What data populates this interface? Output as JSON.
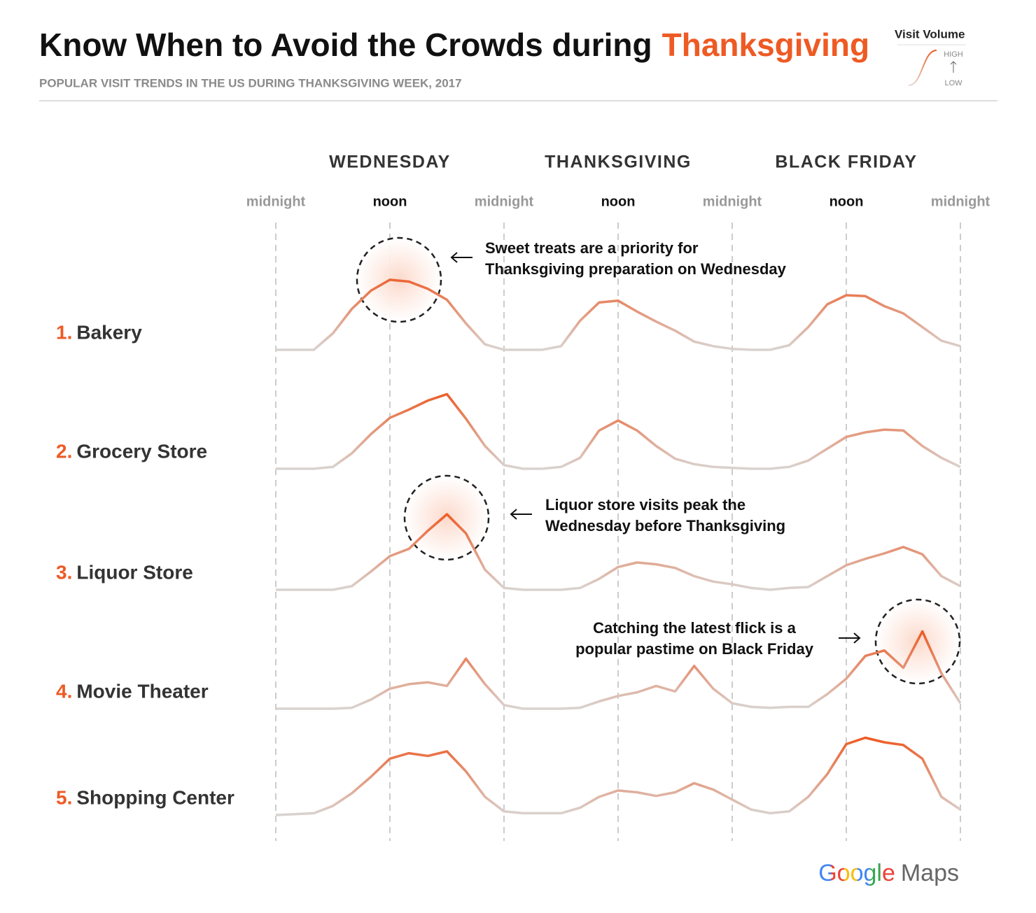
{
  "title": {
    "text": "Know When to Avoid the Crowds during",
    "highlight": "Thanksgiving"
  },
  "subtitle": "POPULAR VISIT TRENDS IN THE US DURING THANKSGIVING WEEK, 2017",
  "legend": {
    "title": "Visit Volume",
    "high": "HIGH",
    "low": "LOW"
  },
  "chart_data": {
    "type": "line",
    "days": [
      "WEDNESDAY",
      "THANKSGIVING",
      "BLACK FRIDAY"
    ],
    "x": [
      0,
      2,
      4,
      6,
      8,
      10,
      12,
      14,
      16,
      18,
      20,
      22,
      24,
      26,
      28,
      30,
      32,
      34,
      36,
      38,
      40,
      42,
      44,
      46,
      48,
      50,
      52,
      54,
      56,
      58,
      60,
      62,
      64,
      66,
      68,
      70,
      72
    ],
    "xlim": [
      0,
      72
    ],
    "xticks": [
      {
        "value": 0,
        "label": "midnight"
      },
      {
        "value": 12,
        "label": "noon"
      },
      {
        "value": 24,
        "label": "midnight"
      },
      {
        "value": 36,
        "label": "noon"
      },
      {
        "value": 48,
        "label": "midnight"
      },
      {
        "value": 60,
        "label": "noon"
      },
      {
        "value": 72,
        "label": "midnight"
      }
    ],
    "ylim": [
      0,
      100
    ],
    "colors": {
      "low": "#d9d3d0",
      "high": "#ee5a24"
    },
    "series": [
      {
        "rank": "1.",
        "name": "Bakery",
        "values": [
          0,
          0,
          0,
          18,
          45,
          65,
          77,
          75,
          67,
          55,
          29,
          6,
          0,
          0,
          0,
          4,
          32,
          52,
          54,
          42,
          31,
          21,
          9,
          4,
          1,
          0,
          0,
          5,
          25,
          50,
          60,
          59,
          48,
          40,
          25,
          10,
          4
        ]
      },
      {
        "rank": "2.",
        "name": "Grocery Store",
        "values": [
          0,
          0,
          0,
          2,
          17,
          38,
          56,
          65,
          75,
          82,
          55,
          25,
          4,
          0,
          0,
          2,
          12,
          42,
          53,
          42,
          25,
          11,
          5,
          2,
          1,
          0,
          0,
          2,
          9,
          22,
          35,
          40,
          43,
          42,
          25,
          12,
          2
        ]
      },
      {
        "rank": "3.",
        "name": "Liquor Store",
        "values": [
          0,
          0,
          0,
          0,
          4,
          20,
          37,
          45,
          65,
          83,
          62,
          22,
          2,
          0,
          0,
          0,
          2,
          12,
          25,
          30,
          28,
          24,
          15,
          9,
          6,
          2,
          0,
          2,
          3,
          15,
          27,
          34,
          40,
          47,
          39,
          15,
          4
        ]
      },
      {
        "rank": "4.",
        "name": "Movie Theater",
        "values": [
          0,
          0,
          0,
          0,
          1,
          10,
          22,
          27,
          29,
          25,
          55,
          27,
          4,
          0,
          0,
          0,
          1,
          8,
          14,
          18,
          25,
          19,
          47,
          22,
          6,
          2,
          1,
          2,
          2,
          16,
          33,
          58,
          64,
          45,
          85,
          39,
          6
        ]
      },
      {
        "rank": "5.",
        "name": "Shopping Center",
        "values": [
          0,
          1,
          2,
          10,
          24,
          42,
          62,
          68,
          65,
          70,
          48,
          20,
          4,
          2,
          2,
          2,
          8,
          20,
          27,
          25,
          21,
          25,
          35,
          28,
          17,
          6,
          2,
          4,
          20,
          45,
          78,
          85,
          80,
          77,
          62,
          20,
          6
        ]
      }
    ],
    "annotations": [
      {
        "lines": [
          "Sweet treats are a priority for",
          "Thanksgiving preparation on Wednesday"
        ]
      },
      {
        "lines": [
          "Liquor store visits peak the",
          "Wednesday before Thanksgiving"
        ]
      },
      {
        "lines": [
          "Catching the latest flick is a",
          "popular pastime on Black Friday"
        ]
      }
    ]
  },
  "logo": {
    "brand": "Google",
    "product": "Maps"
  }
}
